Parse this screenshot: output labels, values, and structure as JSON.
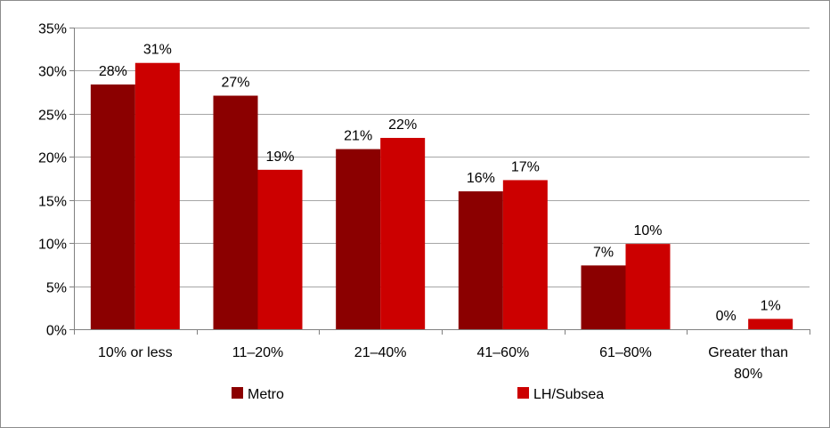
{
  "chart_data": {
    "type": "bar",
    "title": "",
    "xlabel": "",
    "ylabel": "",
    "ylim": [
      0,
      0.35
    ],
    "y_ticks": [
      0,
      0.05,
      0.1,
      0.15,
      0.2,
      0.25,
      0.3,
      0.35
    ],
    "y_tick_labels": [
      "0%",
      "5%",
      "10%",
      "15%",
      "20%",
      "25%",
      "30%",
      "35%"
    ],
    "grid": true,
    "legend_position": "bottom",
    "categories": [
      [
        "10% or less"
      ],
      [
        "11–20%"
      ],
      [
        "21–40%"
      ],
      [
        "41–60%"
      ],
      [
        "61–80%"
      ],
      [
        "Greater than",
        "80%"
      ]
    ],
    "series": [
      {
        "name": "Metro",
        "color": "#8B0000",
        "values": [
          0.284,
          0.271,
          0.209,
          0.16,
          0.074,
          0.0
        ],
        "labels": [
          "28%",
          "27%",
          "21%",
          "16%",
          "7%",
          "0%"
        ]
      },
      {
        "name": "LH/Subsea",
        "color": "#CC0000",
        "values": [
          0.309,
          0.185,
          0.222,
          0.173,
          0.099,
          0.012
        ],
        "labels": [
          "31%",
          "19%",
          "22%",
          "17%",
          "10%",
          "1%"
        ]
      }
    ]
  }
}
